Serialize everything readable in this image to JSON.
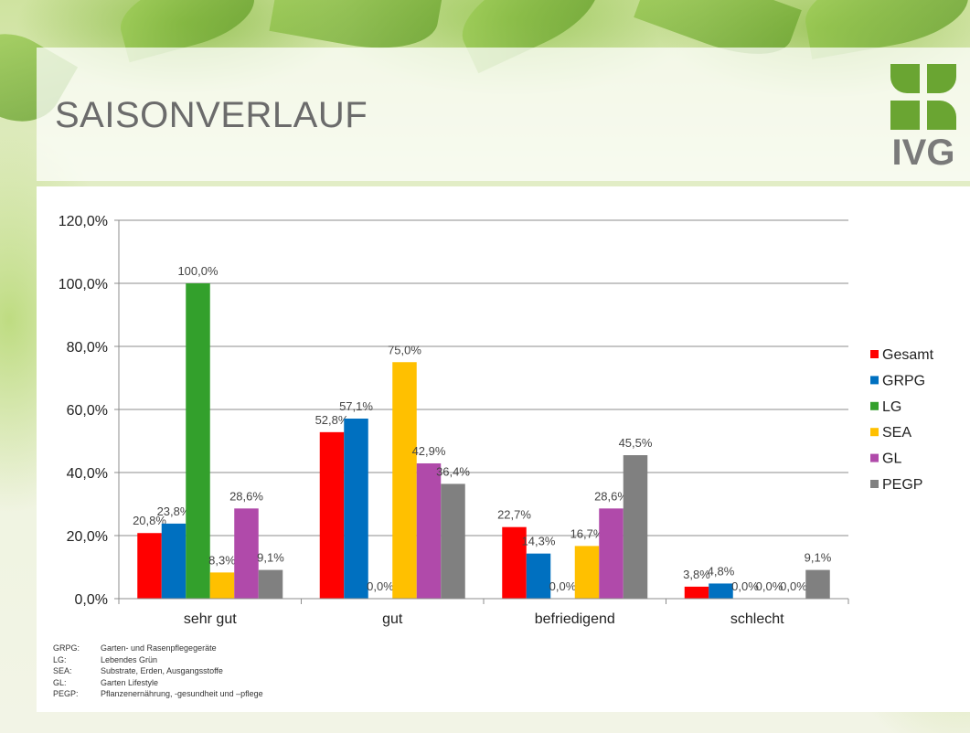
{
  "header": {
    "title": "SAISONVERLAUF",
    "logo_text": "IVG"
  },
  "abbreviations": [
    {
      "key": "GRPG:",
      "text": "Garten- und Rasenpflegegeräte"
    },
    {
      "key": "LG:",
      "text": "Lebendes Grün"
    },
    {
      "key": "SEA:",
      "text": "Substrate, Erden, Ausgangsstoffe"
    },
    {
      "key": "GL:",
      "text": "Garten Lifestyle"
    },
    {
      "key": "PEGP:",
      "text": "Pflanzenernährung, -gesundheit und –pflege"
    }
  ],
  "chart_data": {
    "type": "bar",
    "categories": [
      "sehr gut",
      "gut",
      "befriedigend",
      "schlecht"
    ],
    "series": [
      {
        "name": "Gesamt",
        "color": "#ff0000",
        "values": [
          20.8,
          52.8,
          22.7,
          3.8
        ],
        "labels": [
          "20,8%",
          "52,8%",
          "22,7%",
          "3,8%"
        ]
      },
      {
        "name": "GRPG",
        "color": "#0070c0",
        "values": [
          23.8,
          57.1,
          14.3,
          4.8
        ],
        "labels": [
          "23,8%",
          "57,1%",
          "14,3%",
          "4,8%"
        ]
      },
      {
        "name": "LG",
        "color": "#33a02c",
        "values": [
          100.0,
          0.0,
          0.0,
          0.0
        ],
        "labels": [
          "100,0%",
          "0,0%",
          "0,0%",
          "0,0%"
        ]
      },
      {
        "name": "SEA",
        "color": "#ffc000",
        "values": [
          8.3,
          75.0,
          16.7,
          0.0
        ],
        "labels": [
          "8,3%",
          "75,0%",
          "16,7%",
          "0,0%"
        ]
      },
      {
        "name": "GL",
        "color": "#b04aaa",
        "values": [
          28.6,
          42.9,
          28.6,
          0.0
        ],
        "labels": [
          "28,6%",
          "42,9%",
          "28,6%",
          "0,0%"
        ]
      },
      {
        "name": "PEGP",
        "color": "#808080",
        "values": [
          9.1,
          36.4,
          45.5,
          9.1
        ],
        "labels": [
          "9,1%",
          "36,4%",
          "45,5%",
          "9,1%"
        ]
      }
    ],
    "yticks": [
      "0,0%",
      "20,0%",
      "40,0%",
      "60,0%",
      "80,0%",
      "100,0%",
      "120,0%"
    ],
    "ylim": [
      0,
      120
    ],
    "grid": true,
    "legend": "right"
  }
}
